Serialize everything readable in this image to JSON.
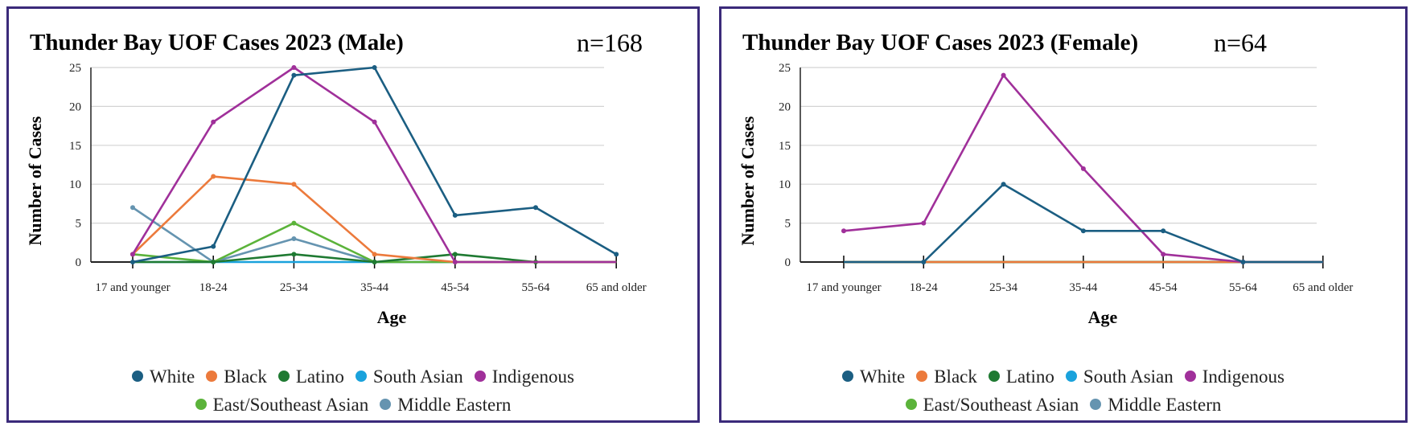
{
  "chart_data": [
    {
      "type": "line",
      "title": "Thunder Bay UOF Cases 2023 (Male)",
      "annotation": "n=168",
      "xlabel": "Age",
      "ylabel": "Number of Cases",
      "categories": [
        "17 and younger",
        "18-24",
        "25-34",
        "35-44",
        "45-54",
        "55-64",
        "65 and older"
      ],
      "ylim": [
        0,
        25
      ],
      "yticks": [
        0,
        5,
        10,
        15,
        20,
        25
      ],
      "grid": true,
      "legend_position": "bottom",
      "series": [
        {
          "name": "White",
          "color": "#1b5e82",
          "values": [
            0,
            2,
            24,
            25,
            6,
            7,
            1
          ]
        },
        {
          "name": "Black",
          "color": "#ec7a3c",
          "values": [
            1,
            11,
            10,
            1,
            0,
            0,
            0
          ]
        },
        {
          "name": "Latino",
          "color": "#1f7a32",
          "values": [
            0,
            0,
            1,
            0,
            1,
            0,
            0
          ]
        },
        {
          "name": "South Asian",
          "color": "#1aa2dc",
          "values": [
            0,
            0,
            0,
            0,
            0,
            0,
            0
          ]
        },
        {
          "name": "Indigenous",
          "color": "#a0309a",
          "values": [
            1,
            18,
            25,
            18,
            0,
            0,
            0
          ]
        },
        {
          "name": "East/Southeast Asian",
          "color": "#5bb33a",
          "values": [
            1,
            0,
            5,
            0,
            0,
            0,
            0
          ]
        },
        {
          "name": "Middle Eastern",
          "color": "#6594b0",
          "values": [
            7,
            0,
            3,
            0,
            0,
            0,
            0
          ]
        }
      ]
    },
    {
      "type": "line",
      "title": "Thunder Bay UOF Cases 2023 (Female)",
      "annotation": "n=64",
      "xlabel": "Age",
      "ylabel": "Number of Cases",
      "categories": [
        "17 and younger",
        "18-24",
        "25-34",
        "35-44",
        "45-54",
        "55-64",
        "65 and older"
      ],
      "ylim": [
        0,
        25
      ],
      "yticks": [
        0,
        5,
        10,
        15,
        20,
        25
      ],
      "grid": true,
      "legend_position": "bottom",
      "series": [
        {
          "name": "White",
          "color": "#1b5e82",
          "values": [
            0,
            0,
            10,
            4,
            4,
            0,
            0
          ]
        },
        {
          "name": "Black",
          "color": "#ec7a3c",
          "values": [
            0,
            0,
            0,
            0,
            0,
            0,
            0
          ]
        },
        {
          "name": "Latino",
          "color": "#1f7a32",
          "values": [
            0,
            0,
            0,
            0,
            0,
            0,
            0
          ]
        },
        {
          "name": "South Asian",
          "color": "#1aa2dc",
          "values": [
            0,
            0,
            0,
            0,
            0,
            0,
            0
          ]
        },
        {
          "name": "Indigenous",
          "color": "#a0309a",
          "values": [
            4,
            5,
            24,
            12,
            1,
            0,
            0
          ]
        },
        {
          "name": "East/Southeast Asian",
          "color": "#5bb33a",
          "values": [
            0,
            0,
            0,
            0,
            0,
            0,
            0
          ]
        },
        {
          "name": "Middle Eastern",
          "color": "#6594b0",
          "values": [
            0,
            0,
            0,
            0,
            0,
            0,
            0
          ]
        }
      ]
    }
  ],
  "colors": {
    "panel_border": "#3b2a7a",
    "gridline": "#d3d3d3",
    "axis": "#222222"
  }
}
